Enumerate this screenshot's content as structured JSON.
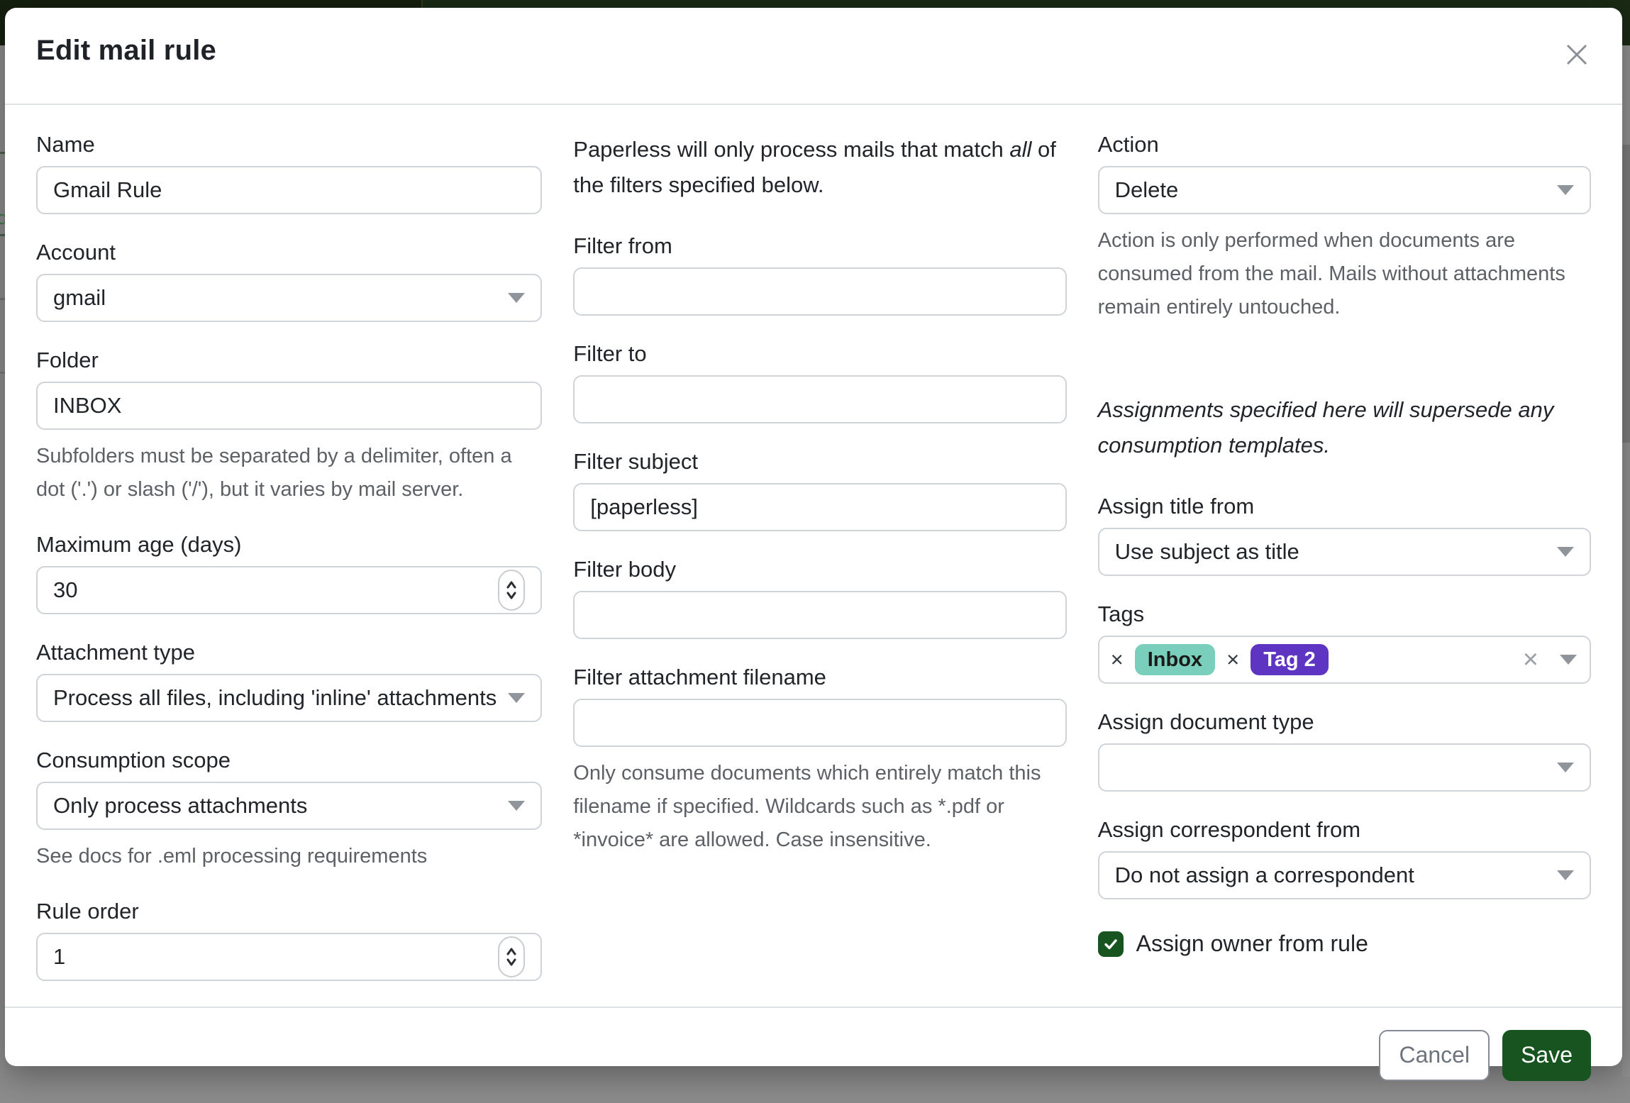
{
  "modal": {
    "title": "Edit mail rule"
  },
  "columns": {
    "left": {
      "name": {
        "label": "Name",
        "value": "Gmail Rule"
      },
      "account": {
        "label": "Account",
        "value": "gmail"
      },
      "folder": {
        "label": "Folder",
        "value": "INBOX",
        "hint": "Subfolders must be separated by a delimiter, often a dot ('.') or slash ('/'), but it varies by mail server."
      },
      "max_age": {
        "label": "Maximum age (days)",
        "value": "30"
      },
      "attachment_type": {
        "label": "Attachment type",
        "value": "Process all files, including 'inline' attachments"
      },
      "consumption_scope": {
        "label": "Consumption scope",
        "value": "Only process attachments",
        "hint": "See docs for .eml processing requirements"
      },
      "rule_order": {
        "label": "Rule order",
        "value": "1"
      }
    },
    "middle": {
      "intro": {
        "before": "Paperless will only process mails that match ",
        "italic": "all",
        "after": " of the filters specified below."
      },
      "filter_from": {
        "label": "Filter from",
        "value": ""
      },
      "filter_to": {
        "label": "Filter to",
        "value": ""
      },
      "filter_subject": {
        "label": "Filter subject",
        "value": "[paperless]"
      },
      "filter_body": {
        "label": "Filter body",
        "value": ""
      },
      "filter_attachment_filename": {
        "label": "Filter attachment filename",
        "value": "",
        "hint": "Only consume documents which entirely match this filename if specified. Wildcards such as *.pdf or *invoice* are allowed. Case insensitive."
      }
    },
    "right": {
      "action": {
        "label": "Action",
        "value": "Delete",
        "hint": "Action is only performed when documents are consumed from the mail. Mails without attachments remain entirely untouched."
      },
      "assignments_note": "Assignments specified here will supersede any consumption templates.",
      "assign_title_from": {
        "label": "Assign title from",
        "value": "Use subject as title"
      },
      "tags": {
        "label": "Tags",
        "remove_symbol": "×",
        "items": [
          {
            "name": "Inbox",
            "color": "#79cfbb",
            "text_color": "#1a1a1a"
          },
          {
            "name": "Tag 2",
            "color": "#5d35c2",
            "text_color": "#ffffff"
          }
        ]
      },
      "assign_document_type": {
        "label": "Assign document type",
        "value": ""
      },
      "assign_correspondent_from": {
        "label": "Assign correspondent from",
        "value": "Do not assign a correspondent"
      },
      "assign_owner": {
        "label": "Assign owner from rule",
        "checked": true
      }
    }
  },
  "footer": {
    "cancel_label": "Cancel",
    "save_label": "Save"
  },
  "colors": {
    "primary_green": "#17541f",
    "header_green": "#1a2a14"
  }
}
